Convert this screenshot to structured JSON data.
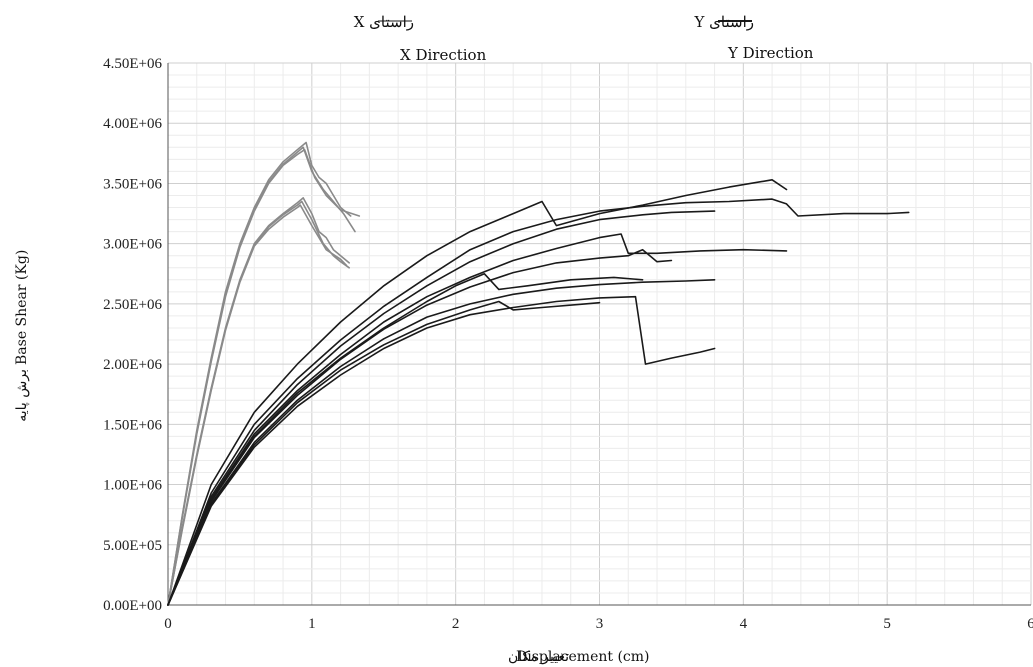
{
  "chart_data": {
    "type": "line",
    "title": "",
    "xlabel": "Displacement (cm)",
    "xlabel_fa": "تغییر مکان",
    "ylabel": "Base Shear (Kg)",
    "ylabel_fa": "برش پایه",
    "xlim": [
      0,
      6
    ],
    "ylim": [
      0,
      4500000
    ],
    "xticks": [
      0,
      1,
      2,
      3,
      4,
      5,
      6
    ],
    "xtick_labels": [
      "0",
      "1",
      "2",
      "3",
      "4",
      "5",
      "6"
    ],
    "yticks": [
      0,
      500000,
      1000000,
      1500000,
      2000000,
      2500000,
      3000000,
      3500000,
      4000000,
      4500000
    ],
    "ytick_labels": [
      "0.00E+00",
      "5.00E+05",
      "1.00E+06",
      "1.50E+06",
      "2.00E+06",
      "2.50E+06",
      "3.00E+06",
      "3.50E+06",
      "4.00E+06",
      "4.50E+06"
    ],
    "grid": true,
    "legend_position": "top-center",
    "legend": [
      {
        "label_fa": "راستای X",
        "label_en": "X Direction",
        "color": "#8a8a8a"
      },
      {
        "label_fa": "راستای Y",
        "label_en": "Y Direction",
        "color": "#1a1a1a"
      }
    ],
    "series": [
      {
        "group": "X",
        "color": "#8a8a8a",
        "points": [
          [
            0,
            0
          ],
          [
            0.1,
            750000
          ],
          [
            0.2,
            1450000
          ],
          [
            0.3,
            2050000
          ],
          [
            0.4,
            2600000
          ],
          [
            0.5,
            3000000
          ],
          [
            0.6,
            3300000
          ],
          [
            0.7,
            3530000
          ],
          [
            0.8,
            3680000
          ],
          [
            0.9,
            3780000
          ],
          [
            0.96,
            3840000
          ],
          [
            1.0,
            3650000
          ],
          [
            1.05,
            3550000
          ],
          [
            1.1,
            3500000
          ],
          [
            1.2,
            3300000
          ],
          [
            1.27,
            3230000
          ]
        ]
      },
      {
        "group": "X",
        "color": "#8a8a8a",
        "points": [
          [
            0,
            0
          ],
          [
            0.1,
            740000
          ],
          [
            0.2,
            1430000
          ],
          [
            0.3,
            2030000
          ],
          [
            0.4,
            2570000
          ],
          [
            0.5,
            2980000
          ],
          [
            0.6,
            3280000
          ],
          [
            0.7,
            3510000
          ],
          [
            0.8,
            3660000
          ],
          [
            0.9,
            3760000
          ],
          [
            0.94,
            3800000
          ],
          [
            1.0,
            3600000
          ],
          [
            1.08,
            3450000
          ],
          [
            1.15,
            3350000
          ],
          [
            1.22,
            3250000
          ],
          [
            1.3,
            3100000
          ]
        ]
      },
      {
        "group": "X",
        "color": "#8a8a8a",
        "points": [
          [
            0,
            0
          ],
          [
            0.1,
            730000
          ],
          [
            0.2,
            1420000
          ],
          [
            0.3,
            2020000
          ],
          [
            0.4,
            2560000
          ],
          [
            0.5,
            2970000
          ],
          [
            0.6,
            3270000
          ],
          [
            0.7,
            3500000
          ],
          [
            0.8,
            3650000
          ],
          [
            0.9,
            3740000
          ],
          [
            0.95,
            3780000
          ],
          [
            1.02,
            3550000
          ],
          [
            1.1,
            3400000
          ],
          [
            1.2,
            3280000
          ],
          [
            1.33,
            3230000
          ]
        ]
      },
      {
        "group": "X",
        "color": "#8a8a8a",
        "points": [
          [
            0,
            0
          ],
          [
            0.1,
            650000
          ],
          [
            0.2,
            1250000
          ],
          [
            0.3,
            1800000
          ],
          [
            0.4,
            2300000
          ],
          [
            0.5,
            2700000
          ],
          [
            0.6,
            3000000
          ],
          [
            0.7,
            3150000
          ],
          [
            0.8,
            3250000
          ],
          [
            0.9,
            3340000
          ],
          [
            0.94,
            3380000
          ],
          [
            1.0,
            3250000
          ],
          [
            1.05,
            3100000
          ],
          [
            1.1,
            3050000
          ],
          [
            1.15,
            2950000
          ],
          [
            1.2,
            2900000
          ],
          [
            1.26,
            2840000
          ]
        ]
      },
      {
        "group": "X",
        "color": "#8a8a8a",
        "points": [
          [
            0,
            0
          ],
          [
            0.1,
            640000
          ],
          [
            0.2,
            1240000
          ],
          [
            0.3,
            1790000
          ],
          [
            0.4,
            2290000
          ],
          [
            0.5,
            2690000
          ],
          [
            0.6,
            2990000
          ],
          [
            0.7,
            3140000
          ],
          [
            0.8,
            3240000
          ],
          [
            0.9,
            3320000
          ],
          [
            0.93,
            3350000
          ],
          [
            1.0,
            3200000
          ],
          [
            1.08,
            3000000
          ],
          [
            1.15,
            2900000
          ],
          [
            1.2,
            2850000
          ],
          [
            1.26,
            2800000
          ]
        ]
      },
      {
        "group": "X",
        "color": "#8a8a8a",
        "points": [
          [
            0,
            0
          ],
          [
            0.1,
            630000
          ],
          [
            0.2,
            1230000
          ],
          [
            0.3,
            1780000
          ],
          [
            0.4,
            2280000
          ],
          [
            0.5,
            2680000
          ],
          [
            0.6,
            2980000
          ],
          [
            0.7,
            3120000
          ],
          [
            0.8,
            3220000
          ],
          [
            0.9,
            3300000
          ],
          [
            0.92,
            3320000
          ],
          [
            1.0,
            3150000
          ],
          [
            1.1,
            2950000
          ],
          [
            1.2,
            2870000
          ],
          [
            1.24,
            2820000
          ]
        ]
      },
      {
        "group": "Y",
        "color": "#1a1a1a",
        "points": [
          [
            0,
            0
          ],
          [
            0.3,
            1000000
          ],
          [
            0.6,
            1600000
          ],
          [
            0.9,
            2000000
          ],
          [
            1.2,
            2350000
          ],
          [
            1.5,
            2650000
          ],
          [
            1.8,
            2900000
          ],
          [
            2.1,
            3100000
          ],
          [
            2.4,
            3250000
          ],
          [
            2.6,
            3350000
          ],
          [
            2.7,
            3150000
          ],
          [
            3.0,
            3250000
          ],
          [
            3.3,
            3320000
          ],
          [
            3.6,
            3400000
          ],
          [
            3.9,
            3470000
          ],
          [
            4.2,
            3530000
          ],
          [
            4.3,
            3450000
          ]
        ]
      },
      {
        "group": "Y",
        "color": "#1a1a1a",
        "points": [
          [
            0,
            0
          ],
          [
            0.3,
            930000
          ],
          [
            0.6,
            1500000
          ],
          [
            0.9,
            1880000
          ],
          [
            1.2,
            2200000
          ],
          [
            1.5,
            2480000
          ],
          [
            1.8,
            2720000
          ],
          [
            2.1,
            2950000
          ],
          [
            2.4,
            3100000
          ],
          [
            2.7,
            3200000
          ],
          [
            3.0,
            3270000
          ],
          [
            3.3,
            3310000
          ],
          [
            3.6,
            3340000
          ],
          [
            3.9,
            3350000
          ],
          [
            4.2,
            3370000
          ],
          [
            4.3,
            3330000
          ],
          [
            4.38,
            3230000
          ],
          [
            4.7,
            3250000
          ],
          [
            5.0,
            3250000
          ],
          [
            5.15,
            3260000
          ]
        ]
      },
      {
        "group": "Y",
        "color": "#1a1a1a",
        "points": [
          [
            0,
            0
          ],
          [
            0.3,
            900000
          ],
          [
            0.6,
            1450000
          ],
          [
            0.9,
            1830000
          ],
          [
            1.2,
            2150000
          ],
          [
            1.5,
            2420000
          ],
          [
            1.8,
            2650000
          ],
          [
            2.1,
            2850000
          ],
          [
            2.4,
            3000000
          ],
          [
            2.7,
            3120000
          ],
          [
            3.0,
            3200000
          ],
          [
            3.3,
            3240000
          ],
          [
            3.5,
            3260000
          ],
          [
            3.8,
            3270000
          ]
        ]
      },
      {
        "group": "Y",
        "color": "#1a1a1a",
        "points": [
          [
            0,
            0
          ],
          [
            0.3,
            880000
          ],
          [
            0.6,
            1420000
          ],
          [
            0.9,
            1780000
          ],
          [
            1.2,
            2080000
          ],
          [
            1.5,
            2350000
          ],
          [
            1.8,
            2560000
          ],
          [
            2.1,
            2720000
          ],
          [
            2.4,
            2860000
          ],
          [
            2.7,
            2960000
          ],
          [
            3.0,
            3050000
          ],
          [
            3.15,
            3080000
          ],
          [
            3.2,
            2920000
          ],
          [
            3.4,
            2920000
          ],
          [
            3.7,
            2940000
          ],
          [
            4.0,
            2950000
          ],
          [
            4.3,
            2940000
          ]
        ]
      },
      {
        "group": "Y",
        "color": "#1a1a1a",
        "points": [
          [
            0,
            0
          ],
          [
            0.3,
            860000
          ],
          [
            0.6,
            1390000
          ],
          [
            0.9,
            1740000
          ],
          [
            1.2,
            2040000
          ],
          [
            1.5,
            2290000
          ],
          [
            1.8,
            2490000
          ],
          [
            2.1,
            2640000
          ],
          [
            2.4,
            2760000
          ],
          [
            2.7,
            2840000
          ],
          [
            3.0,
            2880000
          ],
          [
            3.2,
            2900000
          ],
          [
            3.3,
            2950000
          ],
          [
            3.4,
            2850000
          ],
          [
            3.5,
            2860000
          ]
        ]
      },
      {
        "group": "Y",
        "color": "#1a1a1a",
        "points": [
          [
            0,
            0
          ],
          [
            0.3,
            870000
          ],
          [
            0.6,
            1400000
          ],
          [
            0.9,
            1760000
          ],
          [
            1.2,
            2050000
          ],
          [
            1.5,
            2300000
          ],
          [
            1.8,
            2520000
          ],
          [
            2.0,
            2650000
          ],
          [
            2.2,
            2750000
          ],
          [
            2.3,
            2620000
          ],
          [
            2.5,
            2650000
          ],
          [
            2.8,
            2700000
          ],
          [
            3.1,
            2720000
          ],
          [
            3.3,
            2700000
          ]
        ]
      },
      {
        "group": "Y",
        "color": "#1a1a1a",
        "points": [
          [
            0,
            0
          ],
          [
            0.3,
            840000
          ],
          [
            0.6,
            1350000
          ],
          [
            0.9,
            1700000
          ],
          [
            1.2,
            1980000
          ],
          [
            1.5,
            2210000
          ],
          [
            1.8,
            2390000
          ],
          [
            2.1,
            2500000
          ],
          [
            2.4,
            2580000
          ],
          [
            2.7,
            2630000
          ],
          [
            3.0,
            2660000
          ],
          [
            3.3,
            2680000
          ],
          [
            3.6,
            2690000
          ],
          [
            3.8,
            2700000
          ]
        ]
      },
      {
        "group": "Y",
        "color": "#1a1a1a",
        "points": [
          [
            0,
            0
          ],
          [
            0.3,
            820000
          ],
          [
            0.6,
            1310000
          ],
          [
            0.9,
            1650000
          ],
          [
            1.2,
            1910000
          ],
          [
            1.5,
            2130000
          ],
          [
            1.8,
            2300000
          ],
          [
            2.1,
            2410000
          ],
          [
            2.4,
            2470000
          ],
          [
            2.7,
            2520000
          ],
          [
            3.0,
            2550000
          ],
          [
            3.25,
            2560000
          ],
          [
            3.32,
            2000000
          ],
          [
            3.5,
            2050000
          ],
          [
            3.7,
            2100000
          ],
          [
            3.8,
            2130000
          ]
        ]
      },
      {
        "group": "Y",
        "color": "#1a1a1a",
        "points": [
          [
            0,
            0
          ],
          [
            0.3,
            830000
          ],
          [
            0.6,
            1330000
          ],
          [
            0.9,
            1680000
          ],
          [
            1.2,
            1950000
          ],
          [
            1.5,
            2160000
          ],
          [
            1.8,
            2330000
          ],
          [
            2.1,
            2450000
          ],
          [
            2.3,
            2520000
          ],
          [
            2.4,
            2450000
          ],
          [
            2.6,
            2470000
          ],
          [
            2.9,
            2500000
          ],
          [
            3.0,
            2510000
          ]
        ]
      }
    ]
  }
}
